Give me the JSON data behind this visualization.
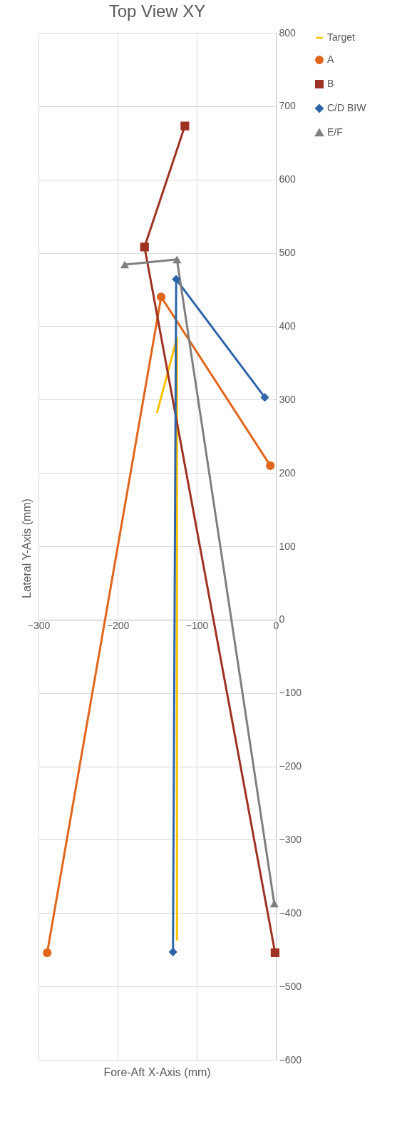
{
  "chart_data": {
    "type": "line",
    "title": "Top View XY",
    "xlabel": "Fore-Aft X-Axis (mm)",
    "ylabel": "Lateral  Y-Axis (mm)",
    "xlim": [
      -300,
      0
    ],
    "xticks": [
      -300,
      -200,
      -100,
      0
    ],
    "ylim": [
      -600,
      800
    ],
    "yticks": [
      -600,
      -500,
      -400,
      -300,
      -200,
      -100,
      0,
      100,
      200,
      300,
      400,
      500,
      600,
      700,
      800
    ],
    "grid": true,
    "legend": "right",
    "series": [
      {
        "name": "Target",
        "color": "#ffc000",
        "marker": "none",
        "x": [
          -150,
          -125,
          -125
        ],
        "values": [
          283,
          384,
          -436
        ]
      },
      {
        "name": "A",
        "color": "#e0661c",
        "marker": "circle",
        "x": [
          -289,
          -145,
          -7
        ],
        "values": [
          -454,
          440,
          210
        ]
      },
      {
        "name": "B",
        "color": "#9e3223",
        "marker": "square",
        "x": [
          -115,
          -166,
          -1
        ],
        "values": [
          673,
          508,
          -454
        ]
      },
      {
        "name": "C/D BIW",
        "color": "#2e64a8",
        "marker": "diamond",
        "x": [
          -130,
          -126,
          -14
        ],
        "values": [
          -453,
          464,
          303
        ]
      },
      {
        "name": "E/F",
        "color": "#7f7f7f",
        "marker": "triangle",
        "x": [
          -191,
          -125,
          -2
        ],
        "values": [
          484,
          491,
          -387
        ]
      }
    ]
  }
}
